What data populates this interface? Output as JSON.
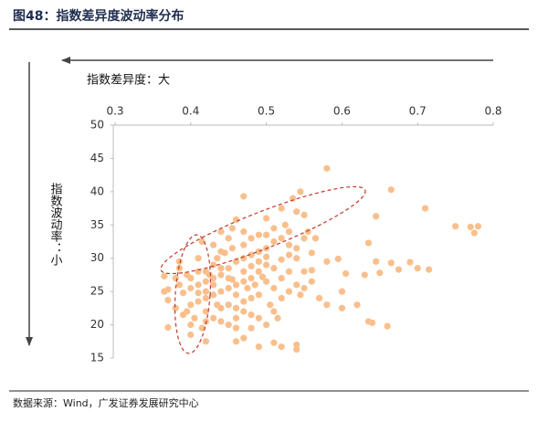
{
  "chart_data": {
    "type": "scatter",
    "title": "图48：指数差异度波动率分布",
    "source": "数据来源：Wind，广发证券发展研究中心",
    "annotations": [
      "指数差异度：大",
      "指数波动率：小"
    ],
    "color": "#f9bf8c",
    "xlim": [
      0.3,
      0.8
    ],
    "xticks": [
      0.3,
      0.4,
      0.5,
      0.6,
      0.7,
      0.8
    ],
    "ylim": [
      15,
      50
    ],
    "yticks": [
      15,
      20,
      25,
      30,
      35,
      40,
      45,
      50
    ],
    "x": [
      0.58,
      0.665,
      0.71,
      0.75,
      0.77,
      0.775,
      0.78,
      0.645,
      0.635,
      0.645,
      0.665,
      0.675,
      0.69,
      0.7,
      0.715,
      0.65,
      0.63,
      0.605,
      0.6,
      0.595,
      0.58,
      0.56,
      0.55,
      0.54,
      0.53,
      0.55,
      0.62,
      0.6,
      0.635,
      0.64,
      0.66,
      0.54,
      0.54,
      0.52,
      0.51,
      0.49,
      0.48,
      0.46,
      0.47,
      0.42,
      0.4,
      0.37,
      0.37,
      0.365,
      0.365,
      0.37,
      0.38,
      0.385,
      0.385,
      0.41,
      0.395,
      0.39,
      0.47,
      0.44,
      0.455,
      0.46,
      0.5,
      0.52,
      0.535,
      0.545,
      0.54,
      0.55,
      0.525,
      0.51,
      0.49,
      0.48,
      0.47,
      0.455,
      0.445,
      0.435,
      0.43,
      0.42,
      0.45,
      0.46,
      0.47,
      0.48,
      0.49,
      0.5,
      0.51,
      0.52,
      0.53,
      0.5,
      0.49,
      0.48,
      0.47,
      0.46,
      0.45,
      0.44,
      0.43,
      0.42,
      0.41,
      0.4,
      0.41,
      0.42,
      0.43,
      0.44,
      0.45,
      0.46,
      0.47,
      0.48,
      0.49,
      0.5,
      0.51,
      0.52,
      0.53,
      0.54,
      0.55,
      0.56,
      0.57,
      0.58,
      0.545,
      0.51,
      0.5,
      0.49,
      0.48,
      0.47,
      0.46,
      0.45,
      0.44,
      0.43,
      0.42,
      0.41,
      0.4,
      0.39,
      0.4,
      0.41,
      0.42,
      0.43,
      0.44,
      0.45,
      0.46,
      0.44,
      0.405,
      0.4,
      0.415,
      0.42,
      0.38,
      0.385,
      0.395,
      0.47,
      0.48,
      0.49,
      0.5,
      0.51,
      0.52,
      0.53,
      0.54,
      0.56,
      0.5,
      0.47,
      0.45,
      0.43,
      0.44,
      0.415,
      0.555,
      0.565,
      0.52,
      0.53,
      0.505,
      0.515,
      0.46,
      0.435,
      0.425,
      0.455,
      0.475,
      0.485,
      0.495
    ],
    "values": [
      43.5,
      40.3,
      37.5,
      34.8,
      34.7,
      33.8,
      34.8,
      36.3,
      32.3,
      29.5,
      29.3,
      28.3,
      29.4,
      28.5,
      28.3,
      27.8,
      27.5,
      27.7,
      25,
      29.9,
      29.5,
      28.2,
      28,
      30,
      32,
      33,
      23,
      22.5,
      20.5,
      20.3,
      19.8,
      17,
      16.3,
      16.7,
      17.3,
      16.7,
      19.5,
      17.5,
      18,
      17.5,
      18.5,
      19.6,
      23.7,
      25,
      27.3,
      25.3,
      27,
      29.5,
      28.5,
      30,
      22,
      21.5,
      39.3,
      34,
      34.5,
      35.8,
      36,
      37.5,
      39,
      40,
      37,
      36.5,
      35,
      34.5,
      33.5,
      33,
      32,
      31.5,
      30.8,
      30,
      29,
      28,
      28.5,
      29.5,
      30,
      30.5,
      31,
      31.5,
      32.5,
      33,
      34,
      29,
      28,
      27,
      26.5,
      26,
      25.5,
      25,
      24.5,
      24,
      23.5,
      23,
      26,
      26.5,
      27,
      27.5,
      23,
      22.5,
      22,
      21.5,
      21,
      20,
      22,
      24,
      25,
      26,
      25.5,
      26.5,
      24,
      23,
      24.5,
      25.5,
      26.5,
      24.5,
      24,
      23.5,
      24.5,
      27,
      28.5,
      26,
      25,
      24.8,
      25.5,
      24.8,
      27,
      28,
      22,
      21,
      20.5,
      20,
      19.5,
      22.5,
      21,
      20,
      19.5,
      20.5,
      22.5,
      26,
      27.5,
      28,
      28.8,
      29.5,
      30.2,
      28.5,
      29.8,
      30.5,
      31.5,
      30.8,
      33.5,
      34,
      33,
      32,
      31,
      32.5,
      34,
      33,
      27,
      28,
      23,
      21,
      21,
      23,
      27.5,
      26.8,
      25.5,
      26,
      27.2
    ]
  }
}
